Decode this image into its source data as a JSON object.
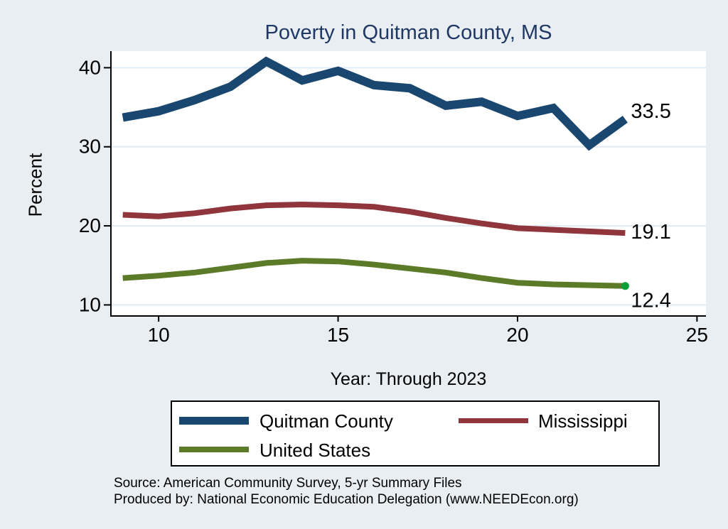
{
  "page": {
    "title": "Poverty in Quitman County, MS",
    "source_line1": "Source: American Community Survey, 5-yr Summary Files",
    "source_line2": "Produced by: National Economic Education Delegation (www.NEEDEcon.org)",
    "colors": {
      "background": "#e8eef2",
      "plot_background": "#ffffff",
      "gridline": "#e0eaf2",
      "axis": "#000000",
      "title_text": "#203864"
    }
  },
  "chart_data": {
    "type": "line",
    "title": "Poverty in Quitman County, MS",
    "xlabel": "Year: Through 2023",
    "ylabel": "Percent",
    "x": [
      9,
      10,
      11,
      12,
      13,
      14,
      15,
      16,
      17,
      18,
      19,
      20,
      21,
      22,
      23
    ],
    "series": [
      {
        "name": "Quitman County",
        "color": "#1a476f",
        "line_width": 12,
        "values": [
          33.7,
          34.5,
          35.9,
          37.6,
          40.8,
          38.4,
          39.6,
          37.8,
          37.4,
          35.2,
          35.7,
          33.9,
          34.9,
          30.2,
          33.5
        ],
        "end_label": "33.5"
      },
      {
        "name": "Mississippi",
        "color": "#90353b",
        "line_width": 8,
        "values": [
          21.4,
          21.2,
          21.6,
          22.2,
          22.6,
          22.7,
          22.6,
          22.4,
          21.8,
          21.0,
          20.3,
          19.7,
          19.5,
          19.3,
          19.1
        ],
        "end_label": "19.1"
      },
      {
        "name": "United States",
        "color": "#5c7b29",
        "line_width": 8,
        "values": [
          13.4,
          13.7,
          14.1,
          14.7,
          15.3,
          15.6,
          15.5,
          15.1,
          14.6,
          14.1,
          13.4,
          12.8,
          12.6,
          12.5,
          12.4
        ],
        "end_label": "12.4",
        "end_marker_color": "#0aa037"
      }
    ],
    "x_ticks": [
      10,
      15,
      20,
      25
    ],
    "y_ticks": [
      40,
      30,
      20,
      10
    ],
    "xlim": [
      8.67,
      25.25
    ],
    "ylim": [
      8.6,
      42.1
    ],
    "grid": true,
    "legend_position": "bottom"
  }
}
